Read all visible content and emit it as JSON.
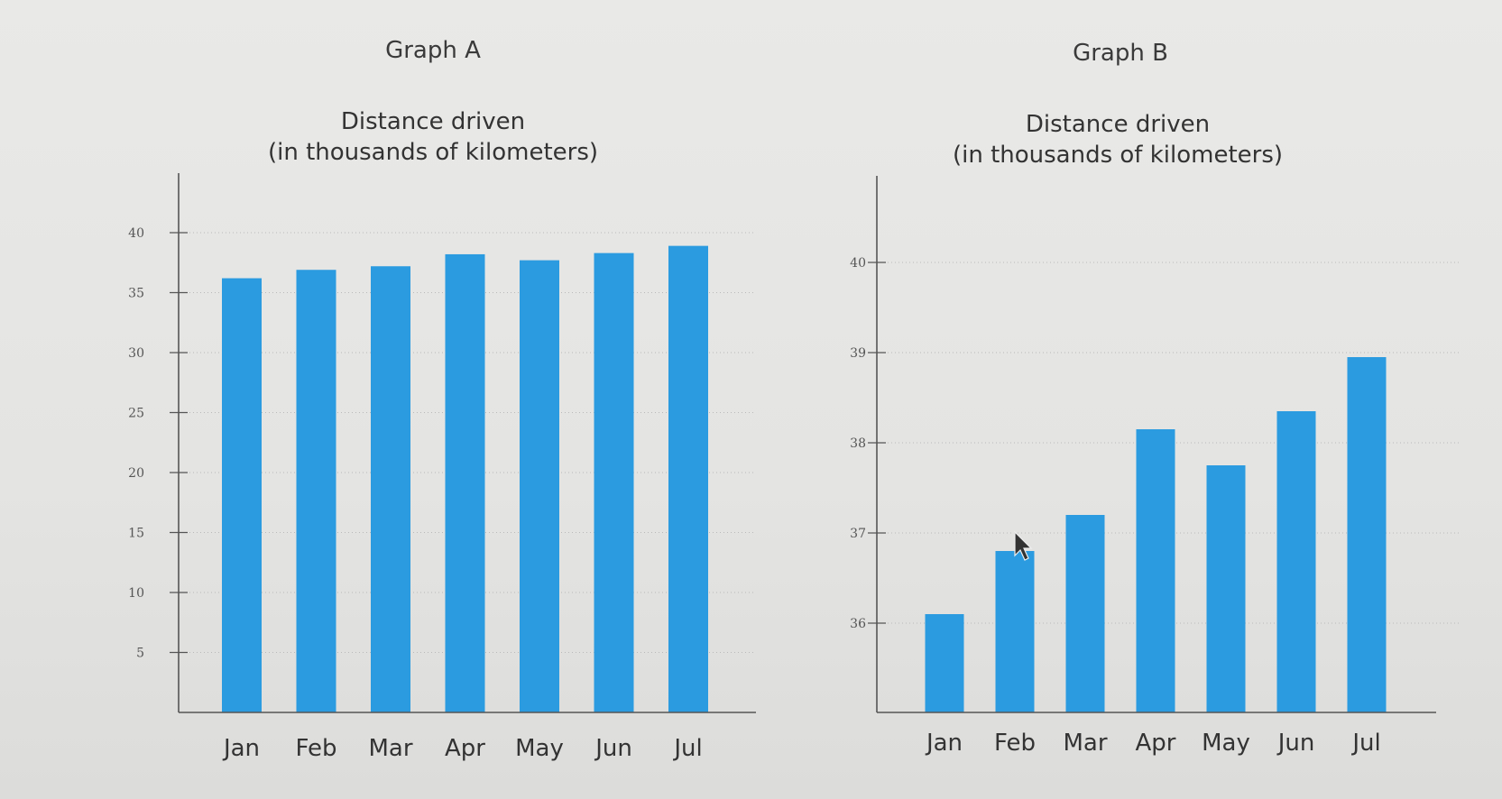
{
  "chart_data": [
    {
      "type": "bar",
      "title": "Graph A",
      "subtitle": [
        "Distance driven",
        "(in thousands of kilometers)"
      ],
      "categories": [
        "Jan",
        "Feb",
        "Mar",
        "Apr",
        "May",
        "Jun",
        "Jul"
      ],
      "values": [
        36.2,
        36.9,
        37.2,
        38.2,
        37.7,
        38.3,
        38.9
      ],
      "ylim": [
        0,
        40
      ],
      "yticks": [
        5,
        10,
        15,
        20,
        25,
        30,
        35,
        40
      ],
      "grid": true,
      "bar_color": "#2b9be0"
    },
    {
      "type": "bar",
      "title": "Graph B",
      "subtitle": [
        "Distance driven",
        "(in thousands of kilometers)"
      ],
      "categories": [
        "Jan",
        "Feb",
        "Mar",
        "Apr",
        "May",
        "Jun",
        "Jul"
      ],
      "values": [
        36.1,
        36.8,
        37.2,
        38.15,
        37.75,
        38.35,
        38.95
      ],
      "ylim": [
        35,
        40
      ],
      "yticks": [
        36,
        37,
        38,
        39,
        40
      ],
      "grid": true,
      "bar_color": "#2b9be0"
    }
  ]
}
